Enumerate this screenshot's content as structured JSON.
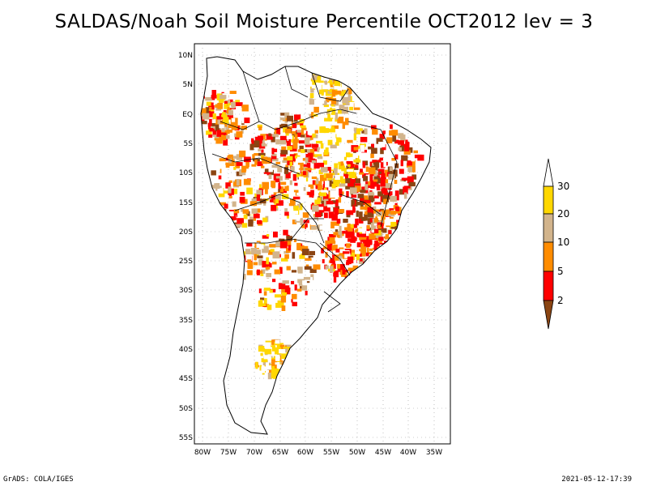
{
  "title": "SALDAS/Noah Soil Moisture Percentile OCT2012 lev = 3",
  "map": {
    "lat_labels": [
      "10N",
      "5N",
      "EQ",
      "5S",
      "10S",
      "15S",
      "20S",
      "25S",
      "30S",
      "35S",
      "40S",
      "45S",
      "50S",
      "55S"
    ],
    "lon_labels": [
      "80W",
      "75W",
      "70W",
      "65W",
      "60W",
      "55W",
      "50W",
      "45W",
      "40W",
      "35W"
    ]
  },
  "legend": {
    "labels": [
      "30",
      "20",
      "10",
      "5",
      "2"
    ],
    "colors": {
      "top": "#ffffff",
      "c20_30": "#ffd700",
      "c10_20": "#d2b48c",
      "c5_10": "#ff8c00",
      "c2_5": "#ff0000",
      "below2": "#8b4513"
    }
  },
  "footer": {
    "left": "GrADS: COLA/IGES",
    "right": "2021-05-12-17:39"
  }
}
